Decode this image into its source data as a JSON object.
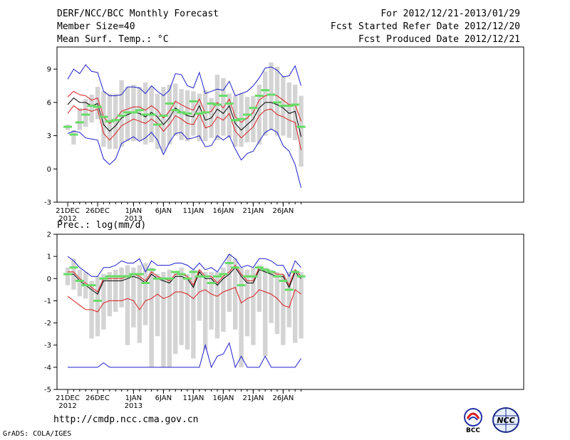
{
  "header": {
    "title": "DERF/NCC/BCC Monthly Forecast",
    "member_size": "Member Size=40",
    "variable1": "Mean Surf. Temp.: °C",
    "period": "For 2012/12/21-2013/01/29",
    "fcst_started": "Fcst Started Refer Date 2012/12/20",
    "fcst_produced": "Fcst Produced Date 2012/12/21"
  },
  "variable2": "Prec.: log(mm/d)",
  "url": "http://cmdp.ncc.cma.gov.cn",
  "credit": "GrADS: COLA/IGES",
  "logos": {
    "left": "BCC",
    "right": "NCC"
  },
  "colors": {
    "box": "#d4d4d4",
    "median": "#66dd66",
    "mean": "#000000",
    "spread": "#d81e1e",
    "range": "#1f1fcc"
  },
  "chart_data": [
    {
      "type": "box-ensemble",
      "title": "Mean Surf. Temp.: °C",
      "x_days": [
        0,
        1,
        2,
        3,
        4,
        5,
        6,
        7,
        8,
        9,
        10,
        11,
        12,
        13,
        14,
        15,
        16,
        17,
        18,
        19,
        20,
        21,
        22,
        23,
        24,
        25,
        26,
        27,
        28,
        29,
        30,
        31,
        32,
        33,
        34,
        35,
        36,
        37,
        38,
        39
      ],
      "xticks": [
        {
          "day": 0,
          "label": "21DEC",
          "sub": "2012"
        },
        {
          "day": 5,
          "label": "26DEC",
          "sub": ""
        },
        {
          "day": 11,
          "label": "1JAN",
          "sub": "2013"
        },
        {
          "day": 16,
          "label": "6JAN",
          "sub": ""
        },
        {
          "day": 21,
          "label": "11JAN",
          "sub": ""
        },
        {
          "day": 26,
          "label": "16JAN",
          "sub": ""
        },
        {
          "day": 31,
          "label": "21JAN",
          "sub": ""
        },
        {
          "day": 36,
          "label": "26JAN",
          "sub": ""
        }
      ],
      "ylim": [
        -3,
        11
      ],
      "yticks": [
        -3,
        0,
        3,
        6,
        9
      ],
      "box_low": [
        3.5,
        2.2,
        3.5,
        3.8,
        4.2,
        4.5,
        2.0,
        1.8,
        1.8,
        2.0,
        2.5,
        2.5,
        2.6,
        2.2,
        2.4,
        1.8,
        1.6,
        2.2,
        3.0,
        2.6,
        2.5,
        3.0,
        2.5,
        2.5,
        2.8,
        2.6,
        3.0,
        2.8,
        2.0,
        2.0,
        2.4,
        2.4,
        2.2,
        3.0,
        3.5,
        3.0,
        3.0,
        2.8,
        2.6,
        0.2
      ],
      "box_high": [
        4.0,
        3.5,
        5.5,
        6.3,
        6.7,
        7.4,
        7.0,
        6.8,
        6.8,
        8.0,
        7.4,
        7.6,
        7.4,
        7.8,
        7.4,
        6.8,
        7.4,
        7.6,
        7.7,
        7.2,
        7.1,
        7.0,
        6.8,
        7.1,
        6.4,
        8.5,
        8.2,
        6.8,
        6.6,
        6.8,
        6.5,
        6.6,
        7.6,
        8.8,
        9.6,
        9.2,
        8.4,
        7.8,
        7.6,
        6.6
      ],
      "median": [
        3.8,
        3.1,
        4.2,
        4.9,
        5.7,
        5.6,
        4.7,
        4.3,
        4.4,
        4.8,
        5.1,
        5.1,
        5.3,
        4.9,
        4.9,
        4.0,
        4.8,
        5.9,
        5.3,
        5.1,
        5.0,
        6.1,
        5.0,
        5.1,
        5.9,
        5.8,
        6.6,
        5.9,
        4.4,
        4.5,
        4.9,
        5.5,
        6.6,
        7.1,
        6.7,
        6.0,
        5.7,
        5.7,
        5.8,
        3.8
      ],
      "mean": [
        5.8,
        6.4,
        6.0,
        6.0,
        5.7,
        5.9,
        4.0,
        3.4,
        3.9,
        4.6,
        4.9,
        5.1,
        5.0,
        4.7,
        5.1,
        4.7,
        4.0,
        4.6,
        5.5,
        5.1,
        4.8,
        4.7,
        5.7,
        4.4,
        4.6,
        5.4,
        5.0,
        5.7,
        4.1,
        3.5,
        4.0,
        4.5,
        5.5,
        6.0,
        6.0,
        5.8,
        5.5,
        5.0,
        5.2,
        2.9
      ],
      "upper": [
        6.5,
        7.0,
        6.7,
        6.6,
        6.2,
        6.4,
        4.7,
        4.1,
        4.5,
        5.2,
        5.4,
        5.6,
        5.6,
        5.3,
        5.7,
        5.3,
        4.6,
        5.2,
        6.1,
        5.8,
        5.5,
        5.3,
        6.3,
        5.0,
        5.2,
        6.0,
        5.5,
        6.3,
        4.7,
        4.2,
        4.6,
        5.1,
        6.2,
        6.6,
        6.7,
        6.6,
        6.2,
        5.8,
        5.8,
        4.3
      ],
      "lower": [
        5.0,
        5.7,
        5.3,
        5.4,
        5.2,
        5.4,
        3.2,
        2.6,
        3.2,
        3.9,
        4.2,
        4.5,
        4.3,
        4.1,
        4.5,
        4.1,
        3.4,
        4.0,
        4.8,
        4.5,
        4.1,
        4.0,
        5.0,
        3.7,
        3.9,
        4.7,
        4.4,
        5.0,
        3.4,
        2.8,
        3.3,
        3.8,
        4.8,
        5.3,
        5.4,
        4.9,
        4.7,
        4.4,
        4.2,
        1.7
      ],
      "max": [
        8.1,
        9.0,
        8.6,
        9.4,
        8.8,
        8.7,
        7.0,
        6.6,
        6.6,
        6.7,
        7.4,
        7.4,
        7.3,
        6.8,
        7.5,
        7.0,
        6.6,
        7.1,
        8.6,
        8.5,
        7.5,
        7.3,
        8.7,
        6.8,
        7.0,
        7.2,
        7.1,
        7.9,
        6.6,
        6.8,
        7.0,
        7.5,
        8.2,
        9.1,
        9.2,
        8.9,
        8.3,
        8.4,
        9.3,
        7.5
      ],
      "min": [
        3.2,
        3.4,
        3.3,
        2.8,
        2.7,
        2.6,
        0.9,
        0.4,
        0.9,
        2.3,
        2.6,
        2.9,
        2.5,
        2.8,
        3.3,
        2.6,
        1.3,
        2.4,
        3.2,
        3.3,
        2.7,
        2.8,
        3.0,
        2.0,
        2.1,
        3.0,
        2.6,
        3.0,
        1.8,
        0.8,
        1.4,
        1.6,
        2.5,
        3.3,
        3.6,
        3.3,
        2.1,
        1.6,
        0.4,
        -1.7
      ]
    },
    {
      "type": "box-ensemble",
      "title": "Prec.: log(mm/d)",
      "x_days": [
        0,
        1,
        2,
        3,
        4,
        5,
        6,
        7,
        8,
        9,
        10,
        11,
        12,
        13,
        14,
        15,
        16,
        17,
        18,
        19,
        20,
        21,
        22,
        23,
        24,
        25,
        26,
        27,
        28,
        29,
        30,
        31,
        32,
        33,
        34,
        35,
        36,
        37,
        38,
        39
      ],
      "xticks": [
        {
          "day": 0,
          "label": "21DEC",
          "sub": "2012"
        },
        {
          "day": 5,
          "label": "26DEC",
          "sub": ""
        },
        {
          "day": 11,
          "label": "1JAN",
          "sub": "2013"
        },
        {
          "day": 16,
          "label": "6JAN",
          "sub": ""
        },
        {
          "day": 21,
          "label": "11JAN",
          "sub": ""
        },
        {
          "day": 26,
          "label": "16JAN",
          "sub": ""
        },
        {
          "day": 31,
          "label": "21JAN",
          "sub": ""
        },
        {
          "day": 36,
          "label": "26JAN",
          "sub": ""
        }
      ],
      "ylim": [
        -5,
        2
      ],
      "yticks": [
        -5,
        -4,
        -3,
        -2,
        -1,
        0,
        1,
        2
      ],
      "box_low": [
        -0.3,
        -0.5,
        -0.8,
        -0.9,
        -2.7,
        -2.6,
        -2.3,
        -1.7,
        -1.5,
        -1.3,
        -3.0,
        -2.2,
        -2.9,
        -2.1,
        -4.0,
        -2.6,
        -4.0,
        -4.0,
        -3.4,
        -3.0,
        -3.2,
        -3.6,
        -1.9,
        -3.2,
        -2.3,
        -2.7,
        -2.4,
        -1.5,
        -2.3,
        -4.0,
        -2.6,
        -3.0,
        -1.5,
        -3.5,
        -2.0,
        -2.5,
        -3.0,
        -2.2,
        -2.9,
        -2.7
      ],
      "box_high": [
        0.5,
        0.9,
        0.4,
        0.3,
        -0.1,
        0.1,
        0.2,
        0.3,
        0.4,
        0.5,
        0.6,
        0.5,
        0.6,
        0.7,
        0.5,
        0.2,
        0.3,
        0.4,
        0.3,
        0.5,
        0.2,
        0.4,
        0.4,
        0.3,
        0.3,
        0.3,
        0.5,
        1.1,
        0.9,
        0.5,
        0.4,
        0.5,
        0.6,
        0.5,
        0.4,
        0.3,
        0.2,
        0.3,
        0.4,
        0.3
      ],
      "median": [
        0.2,
        0.5,
        -0.1,
        -0.3,
        -0.3,
        -1.0,
        0.0,
        0.1,
        0.1,
        0.1,
        0.1,
        0.2,
        0.2,
        -0.2,
        0.4,
        0.0,
        0.0,
        0.0,
        0.3,
        0.2,
        0.0,
        0.3,
        0.1,
        0.1,
        -0.2,
        0.1,
        0.2,
        0.7,
        0.5,
        -0.3,
        0.1,
        0.1,
        0.5,
        0.4,
        0.3,
        0.1,
        -0.1,
        -0.5,
        0.3,
        0.1
      ],
      "mean": [
        0.2,
        0.2,
        -0.1,
        -0.3,
        -0.5,
        -0.7,
        -0.1,
        -0.1,
        -0.1,
        -0.1,
        0.0,
        0.1,
        0.0,
        -0.2,
        0.2,
        0.0,
        -0.1,
        -0.2,
        0.1,
        0.1,
        0.0,
        -0.4,
        0.3,
        0.0,
        0.0,
        -0.3,
        0.0,
        0.2,
        0.5,
        0.1,
        -0.2,
        -0.2,
        0.4,
        0.3,
        0.2,
        0.1,
        0.1,
        -0.4,
        0.3,
        0.0
      ],
      "upper": [
        0.3,
        0.3,
        0.0,
        -0.2,
        -0.4,
        -0.6,
        0.0,
        0.0,
        0.0,
        0.0,
        0.1,
        0.2,
        0.1,
        -0.1,
        0.3,
        0.1,
        0.0,
        -0.1,
        0.2,
        0.2,
        0.1,
        -0.3,
        0.4,
        0.1,
        0.1,
        -0.2,
        0.1,
        0.3,
        0.6,
        0.2,
        -0.1,
        -0.1,
        0.5,
        0.4,
        0.3,
        0.2,
        0.2,
        -0.3,
        0.4,
        0.1
      ],
      "lower": [
        -0.8,
        -1.0,
        -1.2,
        -1.4,
        -1.4,
        -1.5,
        -1.1,
        -1.0,
        -1.0,
        -1.0,
        -0.9,
        -1.0,
        -1.4,
        -1.0,
        -0.9,
        -0.7,
        -0.9,
        -0.8,
        -0.6,
        -0.6,
        -0.7,
        -0.9,
        -0.6,
        -0.5,
        -0.7,
        -0.8,
        -0.6,
        -0.5,
        -0.4,
        -1.1,
        -0.9,
        -0.8,
        -0.5,
        -0.6,
        -0.7,
        -0.9,
        -1.2,
        -1.3,
        -0.5,
        -0.7
      ],
      "max": [
        1.0,
        0.8,
        0.5,
        0.3,
        0.1,
        0.1,
        0.5,
        0.5,
        0.6,
        0.8,
        0.7,
        0.7,
        0.9,
        0.3,
        0.8,
        0.6,
        0.6,
        0.6,
        0.7,
        0.7,
        0.6,
        0.4,
        0.7,
        0.4,
        0.5,
        0.3,
        0.7,
        1.1,
        0.9,
        0.5,
        0.6,
        0.5,
        0.9,
        0.9,
        0.8,
        0.6,
        0.6,
        0.1,
        0.8,
        0.5
      ],
      "min": [
        -4.0,
        -4.0,
        -4.0,
        -4.0,
        -4.0,
        -4.0,
        -3.8,
        -4.0,
        -4.0,
        -4.0,
        -4.0,
        -4.0,
        -4.0,
        -4.0,
        -4.0,
        -4.0,
        -4.0,
        -4.0,
        -4.0,
        -4.0,
        -4.0,
        -4.0,
        -4.0,
        -3.0,
        -4.0,
        -3.5,
        -3.4,
        -2.9,
        -4.0,
        -3.5,
        -4.0,
        -4.0,
        -4.0,
        -3.5,
        -4.0,
        -4.0,
        -4.0,
        -4.0,
        -4.0,
        -3.6
      ]
    }
  ]
}
